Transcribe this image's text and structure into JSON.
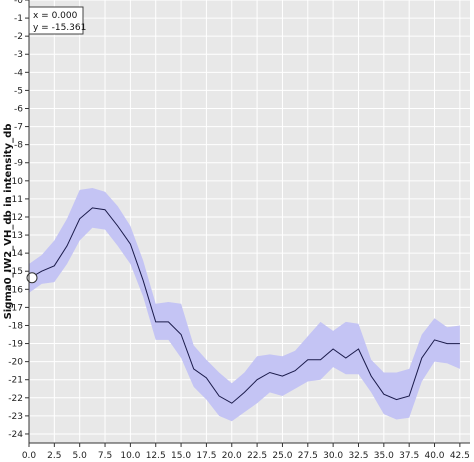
{
  "readout": {
    "x_text": "x = 0.000",
    "y_text": "y = -15.361"
  },
  "colors": {
    "plot_bg": "#e8e8e8",
    "grid": "#ffffff",
    "band": "#c4c4f4",
    "line": "#1a1a4a",
    "marker": "#ffffff"
  },
  "chart_data": {
    "type": "line",
    "title": "",
    "xlabel": "",
    "ylabel": "Sigma0_IW2_VH_db in intensity_db",
    "xlim": [
      0,
      43.5
    ],
    "ylim": [
      -24.5,
      0
    ],
    "grid": true,
    "x_ticks": [
      "0.0",
      "2.5",
      "5.0",
      "7.5",
      "10.0",
      "12.5",
      "15.0",
      "17.5",
      "20.0",
      "22.5",
      "25.0",
      "27.5",
      "30.0",
      "32.5",
      "35.0",
      "37.5",
      "40.0",
      "42.5"
    ],
    "y_ticks": [
      "-0",
      "-1",
      "-2",
      "-3",
      "-4",
      "-5",
      "-6",
      "-7",
      "-8",
      "-9",
      "-10",
      "-11",
      "-12",
      "-13",
      "-14",
      "-15",
      "-16",
      "-17",
      "-18",
      "-19",
      "-20",
      "-21",
      "-22",
      "-23",
      "-24"
    ],
    "x": [
      0,
      1.25,
      2.5,
      3.75,
      5.0,
      6.25,
      7.5,
      8.75,
      10.0,
      11.25,
      12.5,
      13.75,
      15.0,
      16.25,
      17.5,
      18.75,
      20.0,
      21.25,
      22.5,
      23.75,
      25.0,
      26.25,
      27.5,
      28.75,
      30.0,
      31.25,
      32.5,
      33.75,
      35.0,
      36.25,
      37.5,
      38.75,
      40.0,
      41.25,
      42.5
    ],
    "mean": [
      -15.4,
      -15.0,
      -14.7,
      -13.6,
      -12.1,
      -11.5,
      -11.6,
      -12.5,
      -13.5,
      -15.5,
      -17.8,
      -17.8,
      -18.5,
      -20.4,
      -20.9,
      -21.9,
      -22.3,
      -21.7,
      -21.0,
      -20.6,
      -20.8,
      -20.5,
      -19.9,
      -19.9,
      -19.3,
      -19.8,
      -19.3,
      -20.8,
      -21.8,
      -22.1,
      -21.9,
      -19.8,
      -18.8,
      -19.0,
      -19.0
    ],
    "upper": [
      -14.6,
      -14.1,
      -13.3,
      -12.1,
      -10.5,
      -10.4,
      -10.6,
      -11.4,
      -12.5,
      -14.4,
      -16.8,
      -16.7,
      -16.8,
      -19.1,
      -19.9,
      -20.6,
      -21.2,
      -20.6,
      -19.7,
      -19.6,
      -19.7,
      -19.4,
      -18.6,
      -17.8,
      -18.3,
      -17.8,
      -17.9,
      -19.9,
      -20.6,
      -20.6,
      -20.4,
      -18.5,
      -17.6,
      -18.1,
      -18.0
    ],
    "lower": [
      -16.2,
      -15.7,
      -15.6,
      -14.6,
      -13.3,
      -12.6,
      -12.7,
      -13.6,
      -14.6,
      -16.4,
      -18.8,
      -18.8,
      -19.8,
      -21.4,
      -22.1,
      -23.0,
      -23.3,
      -22.8,
      -22.3,
      -21.7,
      -21.9,
      -21.5,
      -21.1,
      -21.0,
      -20.3,
      -20.7,
      -20.7,
      -21.7,
      -22.9,
      -23.2,
      -23.1,
      -21.1,
      -20.0,
      -20.1,
      -20.4
    ],
    "marker": {
      "x": 0,
      "y": -15.361
    }
  }
}
